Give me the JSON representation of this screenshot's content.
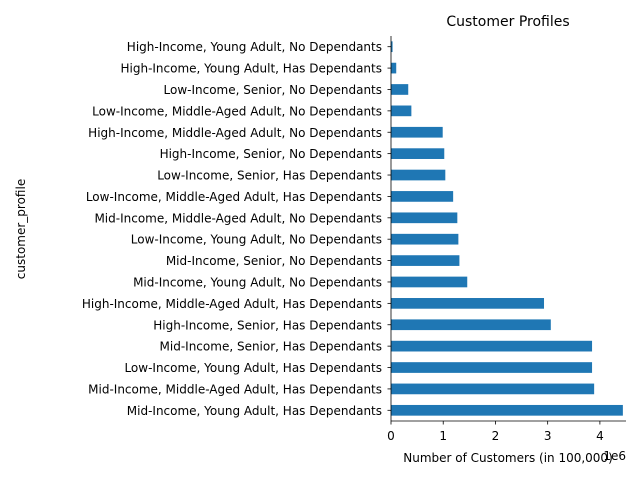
{
  "chart_data": {
    "type": "bar",
    "orientation": "horizontal",
    "title": "Customer Profiles",
    "xlabel": "Number of Customers (in 100,000)",
    "ylabel": "customer_profile",
    "x_offset_label": "1e6",
    "xlim": [
      0,
      4.5
    ],
    "xticks": [
      "0",
      "1",
      "2",
      "3",
      "4"
    ],
    "grid": false,
    "legend": "none",
    "bar_color": "#1f77b4",
    "categories": [
      "Mid-Income, Young Adult, Has Dependants",
      "Mid-Income, Middle-Aged Adult, Has Dependants",
      "Low-Income, Young Adult, Has Dependants",
      "Mid-Income, Senior, Has Dependants",
      "High-Income, Senior, Has Dependants",
      "High-Income, Middle-Aged Adult, Has Dependants",
      "Mid-Income, Young Adult, No Dependants",
      "Mid-Income, Senior, No Dependants",
      "Low-Income, Young Adult, No Dependants",
      "Mid-Income, Middle-Aged Adult, No Dependants",
      "Low-Income, Middle-Aged Adult, Has Dependants",
      "Low-Income, Senior, Has Dependants",
      "High-Income, Senior, No Dependants",
      "High-Income, Middle-Aged Adult, No Dependants",
      "Low-Income, Middle-Aged Adult, No Dependants",
      "Low-Income, Senior, No Dependants",
      "High-Income, Young Adult, Has Dependants",
      "High-Income, Young Adult, No Dependants"
    ],
    "values": [
      4.44,
      3.89,
      3.85,
      3.85,
      3.06,
      2.93,
      1.46,
      1.31,
      1.29,
      1.27,
      1.19,
      1.04,
      1.02,
      0.99,
      0.39,
      0.33,
      0.1,
      0.03
    ]
  }
}
